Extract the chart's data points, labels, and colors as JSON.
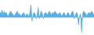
{
  "values": [
    4,
    3,
    6,
    2,
    5,
    3,
    4,
    2,
    1,
    3,
    5,
    4,
    3,
    2,
    1,
    3,
    4,
    5,
    2,
    3,
    1,
    2,
    3,
    4,
    2,
    1,
    3,
    2,
    1,
    4,
    10,
    -3,
    2,
    4,
    3,
    -1,
    2,
    8,
    -1,
    3,
    5,
    3,
    -1,
    3,
    4,
    3,
    2,
    4,
    5,
    3,
    2,
    4,
    3,
    5,
    4,
    3,
    2,
    3,
    4,
    2,
    1,
    3,
    4,
    2,
    1,
    3,
    4,
    2,
    1,
    3,
    5,
    4,
    -1,
    2,
    4,
    3,
    -6,
    1,
    3,
    -12,
    3,
    5,
    4,
    3,
    1,
    3,
    4,
    3,
    4,
    5,
    3,
    2
  ],
  "fill_color": "#5aaee0",
  "line_color": "#5aaee0",
  "background_color": "#ffffff",
  "baseline": 0,
  "ylim": [
    -14,
    14
  ]
}
